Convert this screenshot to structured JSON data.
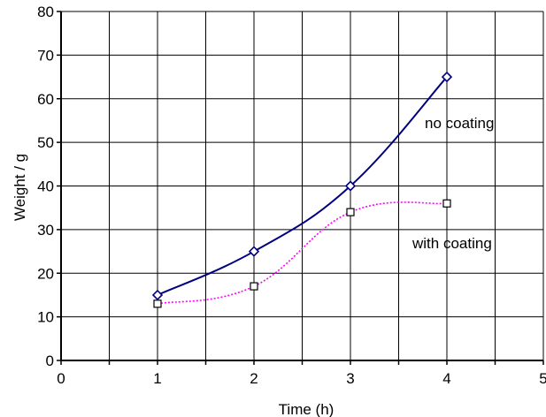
{
  "chart_data": {
    "type": "line",
    "title": "",
    "xlabel": "Time (h)",
    "ylabel": "Weight / g",
    "xlim": [
      0,
      5
    ],
    "ylim": [
      0,
      80
    ],
    "x_ticks": [
      "0",
      "1",
      "2",
      "3",
      "4",
      "5"
    ],
    "y_ticks": [
      "0",
      "10",
      "20",
      "30",
      "40",
      "50",
      "60",
      "70",
      "80"
    ],
    "grid": true,
    "series": [
      {
        "name": "no coating",
        "x": [
          1,
          2,
          3,
          4
        ],
        "values": [
          15,
          25,
          40,
          65
        ],
        "color": "#000080",
        "marker": "diamond",
        "line_style": "solid"
      },
      {
        "name": "with coating",
        "x": [
          1,
          2,
          3,
          4
        ],
        "values": [
          13,
          17,
          34,
          36
        ],
        "color": "#ff00ff",
        "marker": "square",
        "line_style": "dotted"
      }
    ],
    "annotations": [
      {
        "text": "no coating",
        "series": 0
      },
      {
        "text": "with coating",
        "series": 1
      }
    ]
  }
}
